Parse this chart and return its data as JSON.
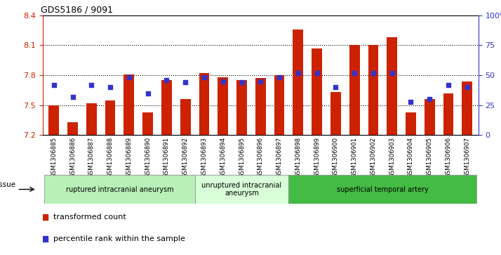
{
  "title": "GDS5186 / 9091",
  "gsm_labels": [
    "GSM1306885",
    "GSM1306886",
    "GSM1306887",
    "GSM1306888",
    "GSM1306889",
    "GSM1306890",
    "GSM1306891",
    "GSM1306892",
    "GSM1306893",
    "GSM1306894",
    "GSM1306895",
    "GSM1306896",
    "GSM1306897",
    "GSM1306898",
    "GSM1306899",
    "GSM1306900",
    "GSM1306901",
    "GSM1306902",
    "GSM1306903",
    "GSM1306904",
    "GSM1306905",
    "GSM1306906",
    "GSM1306907"
  ],
  "bar_values": [
    7.5,
    7.33,
    7.52,
    7.55,
    7.81,
    7.43,
    7.75,
    7.56,
    7.82,
    7.78,
    7.75,
    7.77,
    7.8,
    8.26,
    8.07,
    7.63,
    8.1,
    8.1,
    8.18,
    7.43,
    7.56,
    7.62,
    7.74
  ],
  "percentile_values": [
    42,
    32,
    42,
    40,
    48,
    35,
    46,
    44,
    48,
    45,
    44,
    45,
    48,
    52,
    52,
    40,
    52,
    52,
    52,
    28,
    30,
    42,
    40
  ],
  "bar_color": "#cc2200",
  "dot_color": "#3333cc",
  "ylim_left": [
    7.2,
    8.4
  ],
  "ylim_right": [
    0,
    100
  ],
  "yticks_left": [
    7.2,
    7.5,
    7.8,
    8.1,
    8.4
  ],
  "yticks_right": [
    0,
    25,
    50,
    75,
    100
  ],
  "ytick_labels_right": [
    "0",
    "25",
    "50",
    "75",
    "100%"
  ],
  "grid_values": [
    7.5,
    7.8,
    8.1
  ],
  "groups": [
    {
      "label": "ruptured intracranial aneurysm",
      "start": 0,
      "end": 8,
      "color": "#b8f0b8"
    },
    {
      "label": "unruptured intracranial\naneurysm",
      "start": 8,
      "end": 13,
      "color": "#d8ffd8"
    },
    {
      "label": "superficial temporal artery",
      "start": 13,
      "end": 23,
      "color": "#44bb44"
    }
  ],
  "legend_items": [
    {
      "label": "transformed count",
      "color": "#cc2200"
    },
    {
      "label": "percentile rank within the sample",
      "color": "#3333cc"
    }
  ],
  "tissue_label": "tissue",
  "plot_bg": "#ffffff",
  "xtick_bg": "#d8d8d8"
}
